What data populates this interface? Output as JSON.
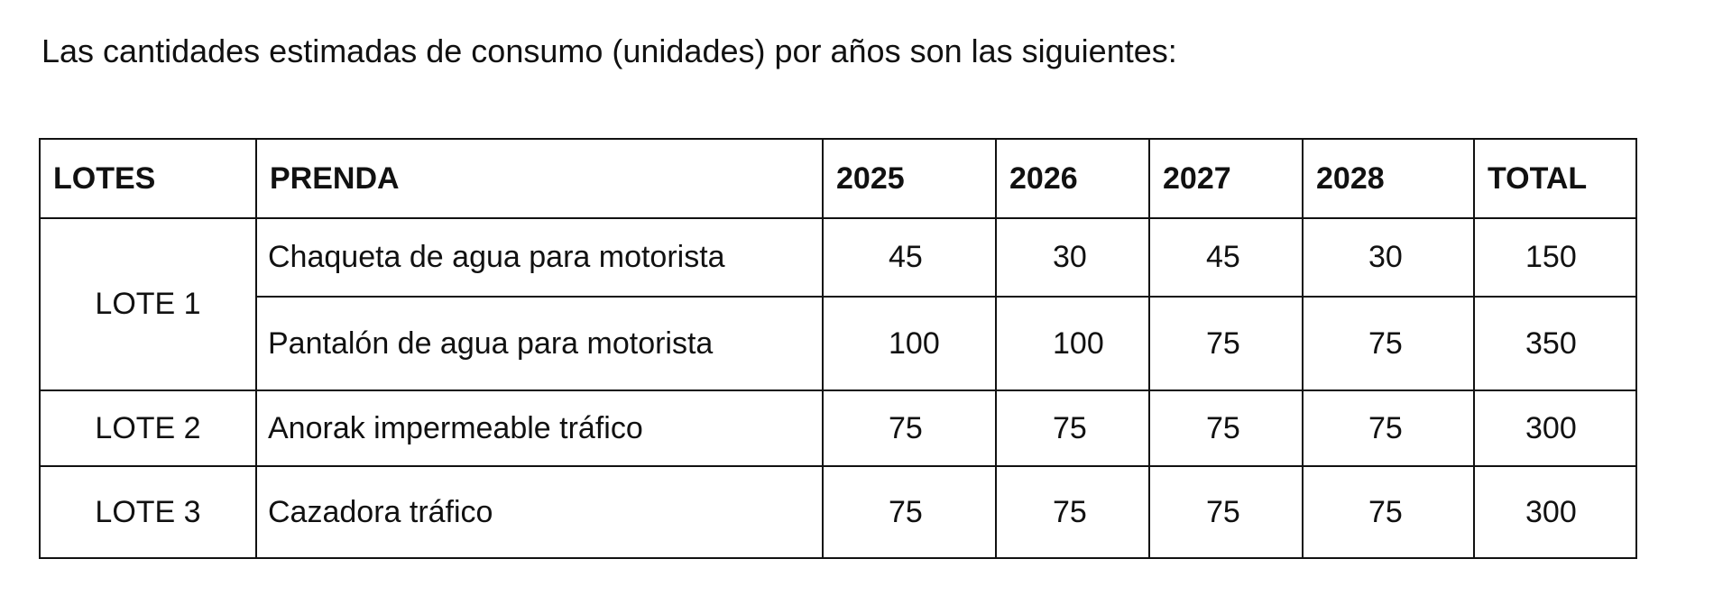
{
  "intro": "Las cantidades estimadas de consumo (unidades) por años son las siguientes:",
  "table": {
    "headers": [
      "LOTES",
      "PRENDA",
      "2025",
      "2026",
      "2027",
      "2028",
      "TOTAL"
    ],
    "rows": [
      {
        "lote": "LOTE 1",
        "prenda": "Chaqueta de agua para motorista",
        "y2025": "45",
        "y2026": "30",
        "y2027": "45",
        "y2028": "30",
        "total": "150"
      },
      {
        "lote": "LOTE 1",
        "prenda": "Pantalón de agua para motorista",
        "y2025": "100",
        "y2026": "100",
        "y2027": "75",
        "y2028": "75",
        "total": "350"
      },
      {
        "lote": "LOTE 2",
        "prenda": "Anorak impermeable tráfico",
        "y2025": "75",
        "y2026": "75",
        "y2027": "75",
        "y2028": "75",
        "total": "300"
      },
      {
        "lote": "LOTE 3",
        "prenda": "Cazadora tráfico",
        "y2025": "75",
        "y2026": "75",
        "y2027": "75",
        "y2028": "75",
        "total": "300"
      }
    ]
  }
}
